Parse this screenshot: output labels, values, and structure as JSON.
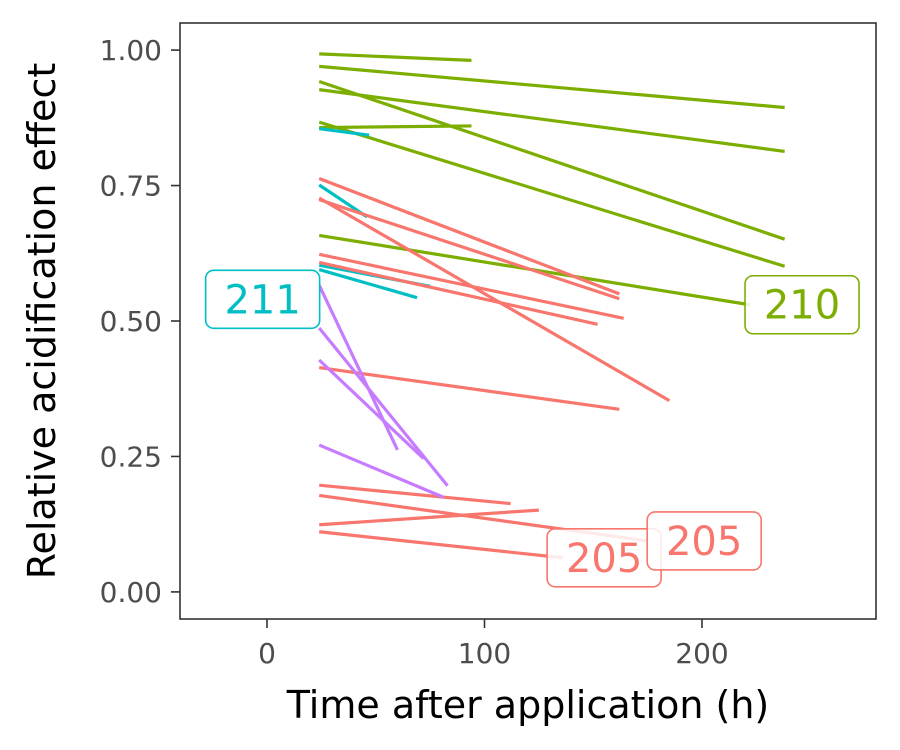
{
  "chart_data": {
    "type": "line",
    "xlabel": "Time after application (h)",
    "ylabel": "Relative acidification effect",
    "xlim": [
      -40,
      280
    ],
    "ylim": [
      -0.05,
      1.05
    ],
    "x_ticks": [
      0,
      100,
      200
    ],
    "y_ticks": [
      0.0,
      0.25,
      0.5,
      0.75,
      1.0
    ],
    "x_tick_labels": [
      "0",
      "100",
      "200"
    ],
    "y_tick_labels": [
      "0.00",
      "0.25",
      "0.50",
      "0.75",
      "1.00"
    ],
    "grid": false,
    "legend": "none",
    "series_colors": {
      "205": "#f8766d",
      "210": "#7cae00",
      "211": "#00bfc4",
      "other": "#c77cff"
    },
    "segments": [
      {
        "group": "210",
        "x": [
          24,
          94
        ],
        "y": [
          0.993,
          0.981
        ]
      },
      {
        "group": "210",
        "x": [
          24,
          238
        ],
        "y": [
          0.97,
          0.894
        ]
      },
      {
        "group": "210",
        "x": [
          24,
          238
        ],
        "y": [
          0.927,
          0.813
        ]
      },
      {
        "group": "210",
        "x": [
          24,
          238
        ],
        "y": [
          0.942,
          0.651
        ]
      },
      {
        "group": "210",
        "x": [
          24,
          238
        ],
        "y": [
          0.867,
          0.601
        ]
      },
      {
        "group": "210",
        "x": [
          24,
          94
        ],
        "y": [
          0.857,
          0.86
        ]
      },
      {
        "group": "210",
        "x": [
          24,
          222
        ],
        "y": [
          0.658,
          0.53
        ]
      },
      {
        "group": "211",
        "x": [
          24,
          47
        ],
        "y": [
          0.855,
          0.843
        ]
      },
      {
        "group": "211",
        "x": [
          24,
          46
        ],
        "y": [
          0.751,
          0.692
        ]
      },
      {
        "group": "211",
        "x": [
          24,
          75
        ],
        "y": [
          0.603,
          0.564
        ]
      },
      {
        "group": "211",
        "x": [
          24,
          69
        ],
        "y": [
          0.595,
          0.543
        ]
      },
      {
        "group": "205",
        "x": [
          24,
          162
        ],
        "y": [
          0.763,
          0.55
        ]
      },
      {
        "group": "205",
        "x": [
          24,
          162
        ],
        "y": [
          0.724,
          0.541
        ]
      },
      {
        "group": "205",
        "x": [
          24,
          185
        ],
        "y": [
          0.727,
          0.353
        ]
      },
      {
        "group": "205",
        "x": [
          24,
          164
        ],
        "y": [
          0.623,
          0.505
        ]
      },
      {
        "group": "205",
        "x": [
          24,
          152
        ],
        "y": [
          0.608,
          0.494
        ]
      },
      {
        "group": "205",
        "x": [
          24,
          162
        ],
        "y": [
          0.414,
          0.337
        ]
      },
      {
        "group": "205",
        "x": [
          24,
          112
        ],
        "y": [
          0.197,
          0.163
        ]
      },
      {
        "group": "205",
        "x": [
          24,
          125
        ],
        "y": [
          0.124,
          0.151
        ]
      },
      {
        "group": "205",
        "x": [
          24,
          175
        ],
        "y": [
          0.178,
          0.094
        ]
      },
      {
        "group": "205",
        "x": [
          24,
          136
        ],
        "y": [
          0.111,
          0.063
        ]
      },
      {
        "group": "other",
        "x": [
          24,
          60
        ],
        "y": [
          0.566,
          0.262
        ]
      },
      {
        "group": "other",
        "x": [
          24,
          83
        ],
        "y": [
          0.487,
          0.196
        ]
      },
      {
        "group": "other",
        "x": [
          24,
          72
        ],
        "y": [
          0.428,
          0.246
        ]
      },
      {
        "group": "other",
        "x": [
          24,
          81
        ],
        "y": [
          0.271,
          0.175
        ]
      }
    ],
    "labels": [
      {
        "text": "211",
        "group": "211",
        "x": -2,
        "y": 0.54
      },
      {
        "text": "210",
        "group": "210",
        "x": 246,
        "y": 0.53
      },
      {
        "text": "205",
        "group": "205",
        "x": 155,
        "y": 0.063
      },
      {
        "text": "205",
        "group": "205",
        "x": 201,
        "y": 0.094
      }
    ]
  }
}
